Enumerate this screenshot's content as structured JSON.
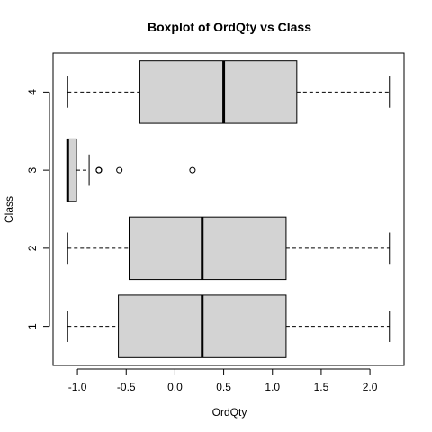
{
  "chart_data": {
    "type": "boxplot",
    "orientation": "horizontal",
    "title": "Boxplot of OrdQty vs Class",
    "xlabel": "OrdQty",
    "ylabel": "Class",
    "xlim": [
      -1.25,
      2.35
    ],
    "x_ticks": [
      "-1.0",
      "-0.5",
      "0.0",
      "0.5",
      "1.0",
      "1.5",
      "2.0"
    ],
    "x_tick_values": [
      -1.0,
      -0.5,
      0.0,
      0.5,
      1.0,
      1.5,
      2.0
    ],
    "categories": [
      "1",
      "2",
      "3",
      "4"
    ],
    "boxes": [
      {
        "category": "1",
        "whisker_low": -1.1,
        "q1": -0.58,
        "median": 0.28,
        "q3": 1.14,
        "whisker_high": 2.2,
        "outliers": []
      },
      {
        "category": "2",
        "whisker_low": -1.1,
        "q1": -0.47,
        "median": 0.28,
        "q3": 1.14,
        "whisker_high": 2.2,
        "outliers": []
      },
      {
        "category": "3",
        "whisker_low": -1.1,
        "q1": -1.1,
        "median": -1.1,
        "q3": -1.01,
        "whisker_high": -0.88,
        "outliers": [
          -0.78,
          -0.78,
          -0.78,
          -0.57,
          0.18
        ]
      },
      {
        "category": "4",
        "whisker_low": -1.1,
        "q1": -0.36,
        "median": 0.5,
        "q3": 1.25,
        "whisker_high": 2.2,
        "outliers": []
      }
    ],
    "colors": {
      "box_fill": "#d3d3d3",
      "stroke": "#000000"
    },
    "grid": false,
    "legend": "none"
  }
}
